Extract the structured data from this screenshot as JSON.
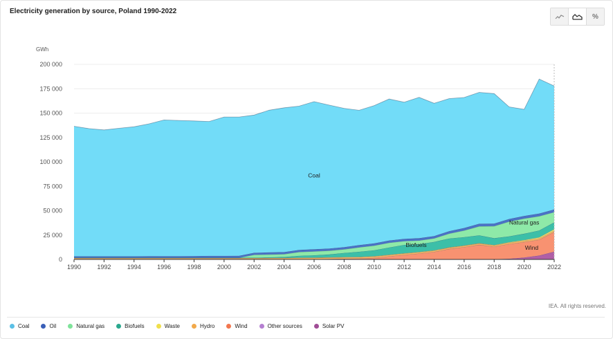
{
  "title": "Electricity generation by source, Poland 1990-2022",
  "toolbar": {
    "buttons": [
      {
        "icon": "line-chart-icon",
        "active": false
      },
      {
        "icon": "area-chart-icon",
        "active": true
      },
      {
        "icon": "percent-icon",
        "label": "%",
        "active": false
      }
    ]
  },
  "credit": "IEA. All rights reserved.",
  "chart_data": {
    "type": "area",
    "stacked": true,
    "ylabel": "GWh",
    "ylim": [
      0,
      200000
    ],
    "yticks": [
      0,
      25000,
      50000,
      75000,
      100000,
      125000,
      150000,
      175000,
      200000
    ],
    "ytick_labels": [
      "0",
      "25 000",
      "50 000",
      "75 000",
      "100 000",
      "125 000",
      "150 000",
      "175 000",
      "200 000"
    ],
    "xticks": [
      1990,
      1992,
      1994,
      1996,
      1998,
      2000,
      2002,
      2004,
      2006,
      2008,
      2010,
      2012,
      2014,
      2016,
      2018,
      2020,
      2022
    ],
    "grid": true,
    "legend_position": "bottom",
    "x": [
      1990,
      1991,
      1992,
      1993,
      1994,
      1995,
      1996,
      1997,
      1998,
      1999,
      2000,
      2001,
      2002,
      2003,
      2004,
      2005,
      2006,
      2007,
      2008,
      2009,
      2010,
      2011,
      2012,
      2013,
      2014,
      2015,
      2016,
      2017,
      2018,
      2019,
      2020,
      2021,
      2022
    ],
    "series": [
      {
        "name": "Solar PV",
        "color": "#b05fa6",
        "values": [
          0,
          0,
          0,
          0,
          0,
          0,
          0,
          0,
          0,
          0,
          0,
          0,
          0,
          0,
          0,
          0,
          0,
          0,
          0,
          0,
          0,
          0,
          0,
          0,
          0,
          0,
          100,
          170,
          300,
          700,
          2000,
          4000,
          8000
        ]
      },
      {
        "name": "Other sources",
        "color": "#c08cd6",
        "values": [
          0,
          0,
          0,
          0,
          0,
          0,
          0,
          0,
          0,
          0,
          0,
          0,
          0,
          0,
          0,
          0,
          0,
          0,
          0,
          0,
          0,
          0,
          0,
          0,
          0,
          0,
          0,
          0,
          0,
          0,
          0,
          0,
          0
        ]
      },
      {
        "name": "Wind",
        "color": "#f89271",
        "values": [
          0,
          0,
          0,
          0,
          0,
          0,
          0,
          0,
          0,
          0,
          0,
          0,
          0,
          100,
          150,
          150,
          250,
          500,
          800,
          1000,
          1700,
          3200,
          4700,
          6000,
          7700,
          10800,
          12600,
          14900,
          12800,
          15100,
          15800,
          16200,
          20100
        ]
      },
      {
        "name": "Hydro",
        "color": "#f7b563",
        "values": [
          1400,
          1400,
          1400,
          1400,
          1400,
          1400,
          1400,
          1400,
          1400,
          1400,
          1400,
          1400,
          1400,
          1400,
          1400,
          1400,
          1400,
          1400,
          1400,
          1400,
          1400,
          1400,
          1400,
          1400,
          1400,
          1400,
          1400,
          1400,
          1400,
          1400,
          1400,
          1400,
          1400
        ]
      },
      {
        "name": "Waste",
        "color": "#f2e36b",
        "values": [
          0,
          0,
          0,
          0,
          0,
          0,
          0,
          0,
          0,
          0,
          0,
          0,
          0,
          0,
          0,
          300,
          300,
          300,
          300,
          300,
          300,
          300,
          300,
          300,
          300,
          300,
          300,
          300,
          300,
          500,
          700,
          1100,
          1500
        ]
      },
      {
        "name": "Biofuels",
        "color": "#3cbfa8",
        "values": [
          400,
          400,
          400,
          400,
          400,
          400,
          400,
          400,
          400,
          400,
          400,
          400,
          400,
          600,
          1000,
          1900,
          2300,
          2900,
          4200,
          5200,
          6000,
          7400,
          8500,
          8000,
          8600,
          9000,
          8500,
          8000,
          7000,
          6000,
          6500,
          7000,
          7000
        ]
      },
      {
        "name": "Natural gas",
        "color": "#8ee9a8",
        "values": [
          0,
          0,
          0,
          0,
          0,
          0,
          0,
          0,
          0,
          0,
          0,
          0,
          3000,
          3000,
          2900,
          3900,
          4000,
          3900,
          3700,
          4500,
          4800,
          4800,
          3900,
          3700,
          3600,
          5000,
          6800,
          9200,
          12400,
          15100,
          15500,
          14600,
          10500
        ]
      },
      {
        "name": "Oil",
        "color": "#4a72c6",
        "values": [
          1400,
          1400,
          1400,
          1400,
          1400,
          1500,
          1600,
          1600,
          1700,
          1800,
          1800,
          1900,
          2000,
          2100,
          2100,
          2100,
          2200,
          2200,
          2200,
          2300,
          2300,
          2300,
          2300,
          2400,
          2400,
          2500,
          2600,
          2600,
          2600,
          2700,
          2700,
          2800,
          2800
        ]
      },
      {
        "name": "Coal",
        "color": "#72dcf8",
        "values": [
          133300,
          130900,
          129600,
          131300,
          132800,
          135700,
          139600,
          139100,
          138500,
          137800,
          142400,
          142300,
          141200,
          145800,
          147900,
          147400,
          151300,
          147000,
          142300,
          138200,
          141200,
          145100,
          140100,
          144400,
          136100,
          135900,
          133700,
          134700,
          133200,
          114900,
          109300,
          137800,
          126600
        ]
      }
    ],
    "annotations": [
      {
        "text": "Coal",
        "x": 2006.0,
        "y": 86000
      },
      {
        "text": "Natural gas",
        "x": 2020.0,
        "y": 38000
      },
      {
        "text": "Biofuels",
        "x": 2012.8,
        "y": 14800
      },
      {
        "text": "Wind",
        "x": 2020.5,
        "y": 12000
      }
    ]
  },
  "legend": [
    {
      "name": "Coal",
      "color": "#5bc0e6"
    },
    {
      "name": "Oil",
      "color": "#3a5fb8"
    },
    {
      "name": "Natural gas",
      "color": "#7fe39a"
    },
    {
      "name": "Biofuels",
      "color": "#2aa88e"
    },
    {
      "name": "Waste",
      "color": "#f0df4c"
    },
    {
      "name": "Hydro",
      "color": "#f2a94a"
    },
    {
      "name": "Wind",
      "color": "#f2774f"
    },
    {
      "name": "Other sources",
      "color": "#b57fd1"
    },
    {
      "name": "Solar PV",
      "color": "#a04d96"
    }
  ]
}
